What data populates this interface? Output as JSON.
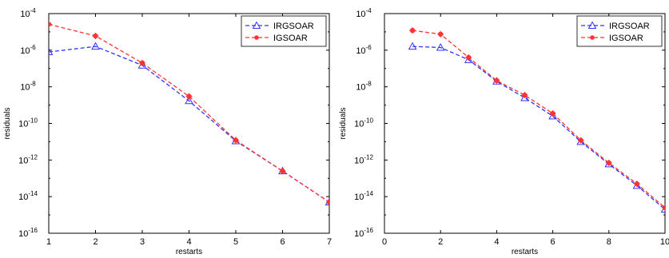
{
  "chart_data": [
    {
      "type": "line",
      "title": "",
      "xlabel": "restarts",
      "ylabel": "residuals",
      "xlim": [
        1,
        7
      ],
      "ylim_exp": [
        -16,
        -4
      ],
      "yscale": "log",
      "x_ticks": [
        "1",
        "2",
        "3",
        "4",
        "5",
        "6",
        "7"
      ],
      "y_tick_base": "10",
      "y_tick_exponents": [
        "-16",
        "-14",
        "-12",
        "-10",
        "-8",
        "-6",
        "-4"
      ],
      "legend_position": "top-right",
      "grid": false,
      "series": [
        {
          "name": "IRGSOAR",
          "color": "#3333ff",
          "marker": "triangle",
          "x": [
            1,
            2,
            3,
            4,
            5,
            6,
            7
          ],
          "y": [
            8e-07,
            1.6e-06,
            1.5e-07,
            1.7e-09,
            1.1e-11,
            2.5e-13,
            5e-15
          ]
        },
        {
          "name": "IGSOAR",
          "color": "#ff3333",
          "marker": "star",
          "x": [
            1,
            2,
            3,
            4,
            5,
            6,
            7
          ],
          "y": [
            2.6e-05,
            6e-06,
            2e-07,
            3e-09,
            1.2e-11,
            2.5e-13,
            5e-15
          ]
        }
      ]
    },
    {
      "type": "line",
      "title": "",
      "xlabel": "restarts",
      "ylabel": "residuals",
      "xlim": [
        0,
        10
      ],
      "ylim_exp": [
        -16,
        -4
      ],
      "yscale": "log",
      "x_ticks": [
        "0",
        "2",
        "4",
        "6",
        "8",
        "10"
      ],
      "y_tick_base": "10",
      "y_tick_exponents": [
        "-16",
        "-14",
        "-12",
        "-10",
        "-8",
        "-6",
        "-4"
      ],
      "legend_position": "top-right",
      "grid": false,
      "series": [
        {
          "name": "IRGSOAR",
          "color": "#3333ff",
          "marker": "triangle",
          "x": [
            1,
            2,
            3,
            4,
            5,
            6,
            7,
            8,
            9,
            10
          ],
          "y": [
            1.6e-06,
            1.4e-06,
            3e-07,
            2e-08,
            2.5e-09,
            2.5e-10,
            1e-11,
            6e-13,
            4e-14,
            2e-15
          ]
        },
        {
          "name": "IGSOAR",
          "color": "#ff3333",
          "marker": "star",
          "x": [
            1,
            2,
            3,
            4,
            5,
            6,
            7,
            8,
            9,
            10
          ],
          "y": [
            1.2e-05,
            7.5e-06,
            4e-07,
            2.2e-08,
            3.5e-09,
            3.5e-10,
            1.2e-11,
            7e-13,
            5e-14,
            2.5e-15
          ]
        }
      ]
    }
  ]
}
